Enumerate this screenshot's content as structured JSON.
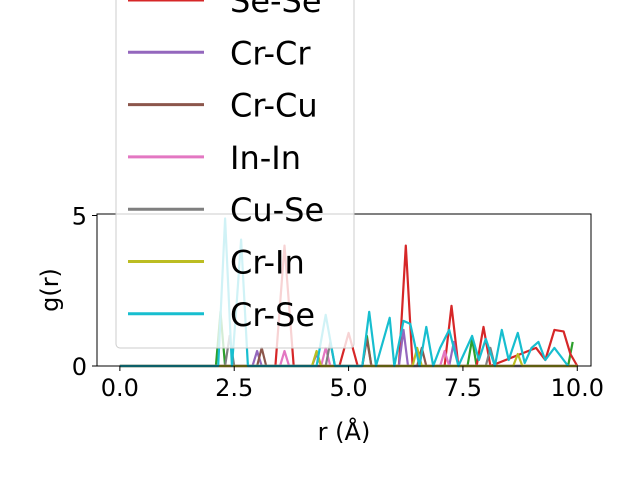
{
  "chart_data": {
    "type": "line",
    "title": "",
    "xlabel": "r (Å)",
    "ylabel": "g(r)",
    "xlim": [
      -0.5,
      10.3
    ],
    "ylim": [
      0,
      5.05
    ],
    "xticks": [
      "0.0",
      "2.5",
      "5.0",
      "7.5",
      "10.0"
    ],
    "xtick_values": [
      0,
      2.5,
      5,
      7.5,
      10
    ],
    "yticks": [
      "0",
      "5"
    ],
    "ytick_values": [
      0,
      5
    ],
    "grid": false,
    "legend_position": "upper-left, overflowing top",
    "series": [
      {
        "name": "Se-Se",
        "color": "#d62728",
        "x": [
          0,
          3.4,
          3.6,
          3.8,
          4.8,
          5.0,
          5.2,
          5.4,
          6.1,
          6.25,
          6.4,
          6.6,
          7.1,
          7.25,
          7.4,
          7.8,
          7.95,
          8.1,
          9.1,
          9.3,
          9.5,
          9.7,
          9.85,
          10.0
        ],
        "y": [
          0,
          0,
          4.0,
          0,
          0,
          1.1,
          0,
          0,
          0,
          4.0,
          0,
          0,
          0,
          2.0,
          0,
          0,
          1.3,
          0,
          0.6,
          0.2,
          1.2,
          1.15,
          0.4,
          0
        ]
      },
      {
        "name": "Cr-Cr",
        "color": "#9467bd",
        "x": [
          0,
          2.9,
          3.0,
          3.1,
          4.2,
          4.3,
          4.4,
          6.1,
          6.2,
          6.3,
          7.2,
          7.3,
          7.4,
          10.0
        ],
        "y": [
          0,
          0,
          0.5,
          0,
          0,
          0.4,
          0,
          0,
          1.2,
          0,
          0,
          0.8,
          0,
          0
        ]
      },
      {
        "name": "Cr-Cu",
        "color": "#8c564b",
        "x": [
          0,
          3.0,
          3.1,
          3.2,
          5.3,
          5.4,
          5.5,
          6.5,
          6.6,
          6.7,
          10.0
        ],
        "y": [
          0,
          0,
          0.6,
          0,
          0,
          0.9,
          0,
          0,
          0.6,
          0,
          0
        ]
      },
      {
        "name": "In-In",
        "color": "#e377c2",
        "x": [
          0,
          3.5,
          3.6,
          3.7,
          4.4,
          4.5,
          4.6,
          7.0,
          7.1,
          7.2,
          10.0
        ],
        "y": [
          0,
          0,
          0.5,
          0,
          0,
          0.6,
          0,
          0,
          0.5,
          0,
          0
        ]
      },
      {
        "name": "Cu-Se",
        "color": "#7f7f7f",
        "x": [
          0,
          2.3,
          2.4,
          2.5,
          4.5,
          4.6,
          4.7,
          8.0,
          8.1,
          8.2,
          10.0
        ],
        "y": [
          0,
          0,
          1.0,
          0,
          0,
          0.8,
          0,
          0,
          0.6,
          0,
          0
        ]
      },
      {
        "name": "Cr-In",
        "color": "#bcbd22",
        "x": [
          0,
          4.2,
          4.3,
          4.4,
          6.4,
          6.5,
          6.6,
          8.6,
          8.7,
          8.8,
          10.0
        ],
        "y": [
          0,
          0,
          0.5,
          0,
          0,
          0.6,
          0,
          0,
          0.4,
          0,
          0
        ]
      },
      {
        "name": "Cr-Se",
        "color": "#17becf",
        "x": [
          0,
          2.15,
          2.3,
          2.45,
          2.55,
          2.65,
          2.8,
          4.3,
          4.5,
          4.7,
          5.3,
          5.45,
          5.6,
          5.9,
          6.0,
          6.2,
          6.35,
          6.55,
          6.7,
          6.85,
          7.0,
          7.2,
          7.4,
          7.7,
          7.85,
          8.0,
          8.2,
          8.35,
          8.5,
          8.7,
          8.85,
          9.0,
          9.15,
          9.3,
          9.5,
          9.65,
          9.8
        ],
        "y": [
          0,
          0,
          4.9,
          0,
          2.0,
          4.2,
          0,
          0,
          1.7,
          0,
          0,
          1.8,
          0,
          1.6,
          0,
          1.5,
          1.4,
          0,
          1.3,
          0,
          0.6,
          1.2,
          0,
          1.0,
          0.2,
          0.9,
          0,
          1.2,
          0.2,
          1.1,
          0.1,
          0.6,
          0.8,
          0.2,
          0.6,
          0.3,
          0
        ]
      }
    ],
    "legend_extra_items": [
      {
        "color": "#2ca02c",
        "x": [
          0,
          2.1,
          2.2,
          2.3,
          5.3,
          5.4,
          5.5,
          7.6,
          7.7,
          7.8,
          9.8,
          9.9
        ],
        "y": [
          0,
          0,
          1.8,
          0,
          0,
          1.0,
          0,
          0,
          0.9,
          0,
          0,
          0.8
        ]
      }
    ]
  }
}
